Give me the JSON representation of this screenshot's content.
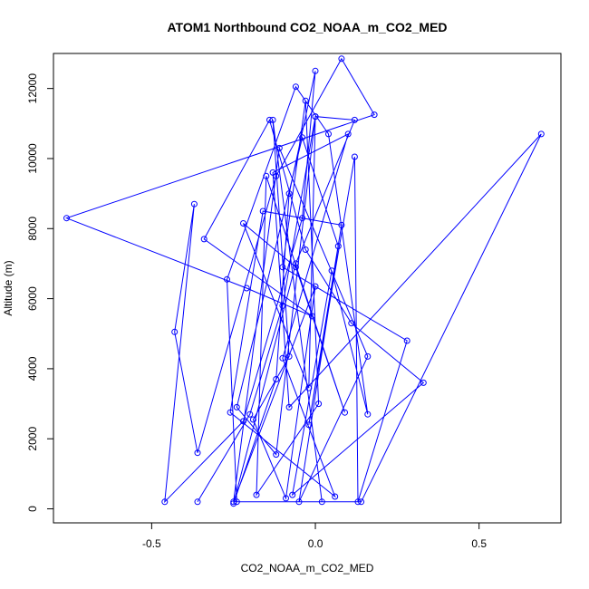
{
  "chart_data": {
    "type": "line",
    "title": "ATOM1 Northbound CO2_NOAA_m_CO2_MED",
    "xlabel": "CO2_NOAA_m_CO2_MED",
    "ylabel": "Altitude (m)",
    "xlim": [
      -0.8,
      0.75
    ],
    "ylim": [
      -400,
      13000
    ],
    "xticks": [
      -0.5,
      0.0,
      0.5
    ],
    "xtick_labels": [
      "-0.5",
      "0.0",
      "0.5"
    ],
    "yticks": [
      0,
      2000,
      4000,
      6000,
      8000,
      10000,
      12000
    ],
    "ytick_labels": [
      "0",
      "2000",
      "4000",
      "6000",
      "8000",
      "10000",
      "12000"
    ],
    "grid": false,
    "legend": "none",
    "series": [
      {
        "color": "#0000ff",
        "marker": "open-circle",
        "points": [
          [
            -0.36,
            200
          ],
          [
            -0.2,
            2700
          ],
          [
            -0.1,
            5800
          ],
          [
            0.0,
            11200
          ],
          [
            0.12,
            11100
          ],
          [
            -0.06,
            7000
          ],
          [
            -0.25,
            150
          ],
          [
            -0.12,
            3700
          ],
          [
            -0.08,
            9000
          ],
          [
            0.0,
            12500
          ],
          [
            -0.04,
            8300
          ],
          [
            -0.22,
            2500
          ],
          [
            -0.46,
            200
          ],
          [
            -0.37,
            8700
          ],
          [
            -0.43,
            5050
          ],
          [
            -0.36,
            1600
          ],
          [
            -0.12,
            9500
          ],
          [
            0.08,
            12850
          ],
          [
            0.18,
            11250
          ],
          [
            -0.76,
            8300
          ],
          [
            -0.21,
            6300
          ],
          [
            -0.01,
            5500
          ],
          [
            -0.34,
            7700
          ],
          [
            -0.14,
            11100
          ],
          [
            -0.03,
            7400
          ],
          [
            0.11,
            5300
          ],
          [
            0.33,
            3600
          ],
          [
            -0.07,
            400
          ],
          [
            0.05,
            6800
          ],
          [
            0.16,
            2700
          ],
          [
            0.04,
            10700
          ],
          [
            -0.06,
            12050
          ],
          [
            -0.27,
            6550
          ],
          [
            -0.24,
            200
          ],
          [
            0.14,
            200
          ],
          [
            0.69,
            10700
          ],
          [
            -0.08,
            2900
          ],
          [
            -0.13,
            9600
          ],
          [
            0.1,
            10700
          ],
          [
            -0.1,
            4300
          ],
          [
            0.06,
            350
          ],
          [
            -0.26,
            2750
          ],
          [
            -0.16,
            8500
          ],
          [
            0.08,
            8100
          ],
          [
            -0.02,
            2400
          ],
          [
            0.12,
            10050
          ],
          [
            0.13,
            200
          ],
          [
            0.28,
            4800
          ],
          [
            -0.1,
            6900
          ],
          [
            -0.03,
            11650
          ],
          [
            0.01,
            3000
          ],
          [
            -0.18,
            400
          ],
          [
            -0.15,
            9500
          ],
          [
            0.09,
            2750
          ],
          [
            -0.06,
            6900
          ],
          [
            -0.22,
            8150
          ],
          [
            -0.02,
            3450
          ],
          [
            0.0,
            11200
          ],
          [
            -0.12,
            1550
          ],
          [
            -0.24,
            2900
          ],
          [
            -0.04,
            10600
          ],
          [
            0.07,
            7500
          ],
          [
            -0.05,
            200
          ],
          [
            0.16,
            4350
          ],
          [
            -0.11,
            10300
          ],
          [
            -0.25,
            200
          ],
          [
            0.0,
            6350
          ],
          [
            -0.09,
            300
          ],
          [
            -0.19,
            2550
          ],
          [
            -0.08,
            4350
          ],
          [
            -0.13,
            11100
          ],
          [
            0.02,
            200
          ]
        ]
      }
    ]
  }
}
